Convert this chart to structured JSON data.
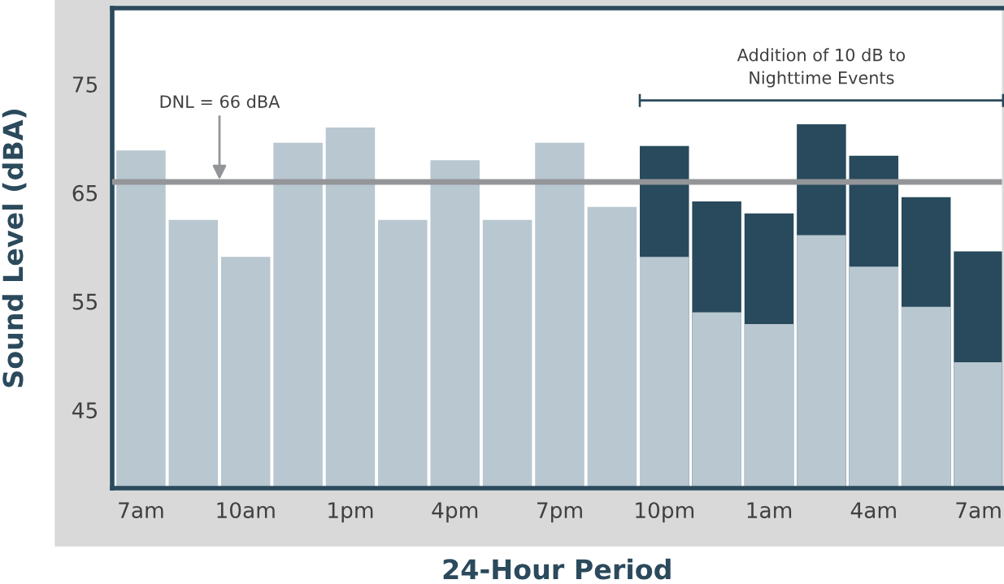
{
  "chart_data": {
    "type": "bar",
    "xlabel": "24-Hour Period",
    "ylabel": "Sound Level (dBA)",
    "categories": [
      "7am",
      null,
      "10am",
      null,
      "1pm",
      null,
      "4pm",
      null,
      "7pm",
      null,
      "10pm",
      null,
      "1am",
      null,
      "4am",
      null,
      "7am"
    ],
    "series": [
      {
        "color": "#284a5c",
        "values": [
          null,
          null,
          null,
          null,
          null,
          null,
          null,
          null,
          null,
          null,
          69.3,
          64.2,
          63.1,
          71.3,
          68.4,
          64.6,
          59.6
        ]
      },
      {
        "color": "#b8c7d0",
        "values": [
          68.9,
          62.5,
          59.1,
          69.6,
          71.0,
          62.5,
          68.0,
          62.5,
          69.6,
          63.7,
          59.1,
          54.0,
          52.9,
          61.1,
          58.2,
          54.5,
          49.4
        ]
      }
    ],
    "ylim": [
      37.8,
      82
    ],
    "yticks": [
      45,
      55,
      65,
      75
    ],
    "grid": false,
    "legend": false,
    "ref_lines": [
      {
        "axis": "y",
        "value": 66,
        "label": "DNL = 66 dBA",
        "color": "#939598"
      }
    ],
    "annotations": [
      "Addition of 10 dB to\nNighttime Events"
    ]
  }
}
